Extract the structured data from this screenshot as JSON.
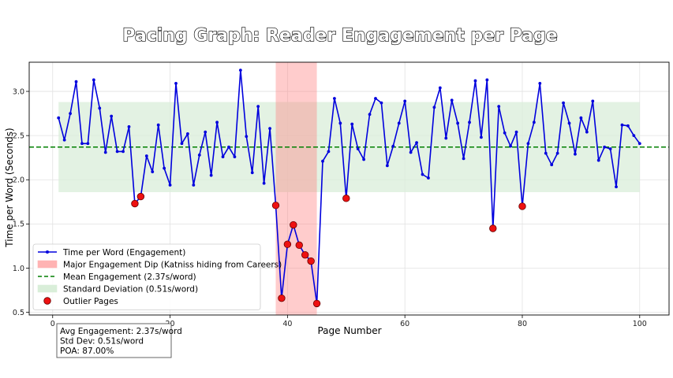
{
  "chart_data": {
    "type": "line",
    "title": "Pacing Graph: Reader Engagement per Page",
    "xlabel": "Page Number",
    "ylabel": "Time per Word (Seconds)",
    "xlim": [
      -4,
      105
    ],
    "ylim": [
      0.47,
      3.33
    ],
    "xticks": [
      0,
      20,
      40,
      60,
      80,
      100
    ],
    "yticks": [
      0.5,
      1.0,
      1.5,
      2.0,
      2.5,
      3.0
    ],
    "grid": true,
    "legend_position": "lower-left",
    "mean": 2.37,
    "std_band": [
      1.86,
      2.88
    ],
    "std_band_x": [
      1,
      100
    ],
    "dip_range": [
      38,
      45
    ],
    "series": [
      {
        "name": "Time per Word (Engagement)",
        "color": "#0000dd",
        "x": [
          1,
          2,
          3,
          4,
          5,
          6,
          7,
          8,
          9,
          10,
          11,
          12,
          13,
          14,
          15,
          16,
          17,
          18,
          19,
          20,
          21,
          22,
          23,
          24,
          25,
          26,
          27,
          28,
          29,
          30,
          31,
          32,
          33,
          34,
          35,
          36,
          37,
          38,
          39,
          40,
          41,
          42,
          43,
          44,
          45,
          46,
          47,
          48,
          49,
          50,
          51,
          52,
          53,
          54,
          55,
          56,
          57,
          58,
          59,
          60,
          61,
          62,
          63,
          64,
          65,
          66,
          67,
          68,
          69,
          70,
          71,
          72,
          73,
          74,
          75,
          76,
          77,
          78,
          79,
          80,
          81,
          82,
          83,
          84,
          85,
          86,
          87,
          88,
          89,
          90,
          91,
          92,
          93,
          94,
          95,
          96,
          97,
          98,
          99,
          100
        ],
        "y": [
          2.7,
          2.45,
          2.75,
          3.11,
          2.41,
          2.41,
          3.13,
          2.81,
          2.31,
          2.72,
          2.32,
          2.32,
          2.6,
          1.73,
          1.81,
          2.27,
          2.09,
          2.62,
          2.13,
          1.94,
          3.09,
          2.41,
          2.52,
          1.94,
          2.28,
          2.54,
          2.05,
          2.65,
          2.26,
          2.37,
          2.26,
          3.24,
          2.49,
          2.08,
          2.83,
          1.96,
          2.58,
          1.71,
          0.66,
          1.27,
          1.49,
          1.26,
          1.15,
          1.08,
          0.6,
          2.21,
          2.32,
          2.92,
          2.64,
          1.79,
          2.63,
          2.35,
          2.23,
          2.74,
          2.92,
          2.87,
          2.16,
          2.38,
          2.64,
          2.89,
          2.31,
          2.42,
          2.06,
          2.02,
          2.82,
          3.04,
          2.47,
          2.9,
          2.64,
          2.24,
          2.65,
          3.12,
          2.48,
          3.13,
          1.45,
          2.83,
          2.53,
          2.38,
          2.54,
          1.7,
          2.41,
          2.65,
          3.09,
          2.3,
          2.17,
          2.3,
          2.87,
          2.64,
          2.29,
          2.7,
          2.54,
          2.89,
          2.22,
          2.37,
          2.35,
          1.92,
          2.62,
          2.61,
          2.5,
          2.41
        ]
      }
    ],
    "outliers": {
      "x": [
        14,
        15,
        38,
        39,
        40,
        41,
        42,
        43,
        44,
        45,
        50,
        75,
        80
      ],
      "y": [
        1.73,
        1.81,
        1.71,
        0.66,
        1.27,
        1.49,
        1.26,
        1.15,
        1.08,
        0.6,
        1.79,
        1.45,
        1.7
      ]
    },
    "legend": [
      {
        "label": "Time per Word (Engagement)",
        "kind": "line-marker",
        "color": "#0000dd"
      },
      {
        "label": "Major Engagement Dip (Katniss hiding from Careers)",
        "kind": "patch",
        "color": "#ffb3b3"
      },
      {
        "label": "Mean Engagement (2.37s/word)",
        "kind": "dashed",
        "color": "#007f00"
      },
      {
        "label": "Standard Deviation (0.51s/word)",
        "kind": "patch",
        "color": "#d9eed9"
      },
      {
        "label": "Outlier Pages",
        "kind": "circle",
        "color": "#ee1111"
      }
    ],
    "colors": {
      "line": "#0000dd",
      "mean": "#007f00",
      "std_fill": "#d9eed9",
      "dip_fill": "#ffb3b3",
      "outlier": "#ee1111"
    },
    "stats_box": [
      "Avg Engagement: 2.37s/word",
      "Std Dev: 0.51s/word",
      "POA: 87.00%"
    ]
  }
}
